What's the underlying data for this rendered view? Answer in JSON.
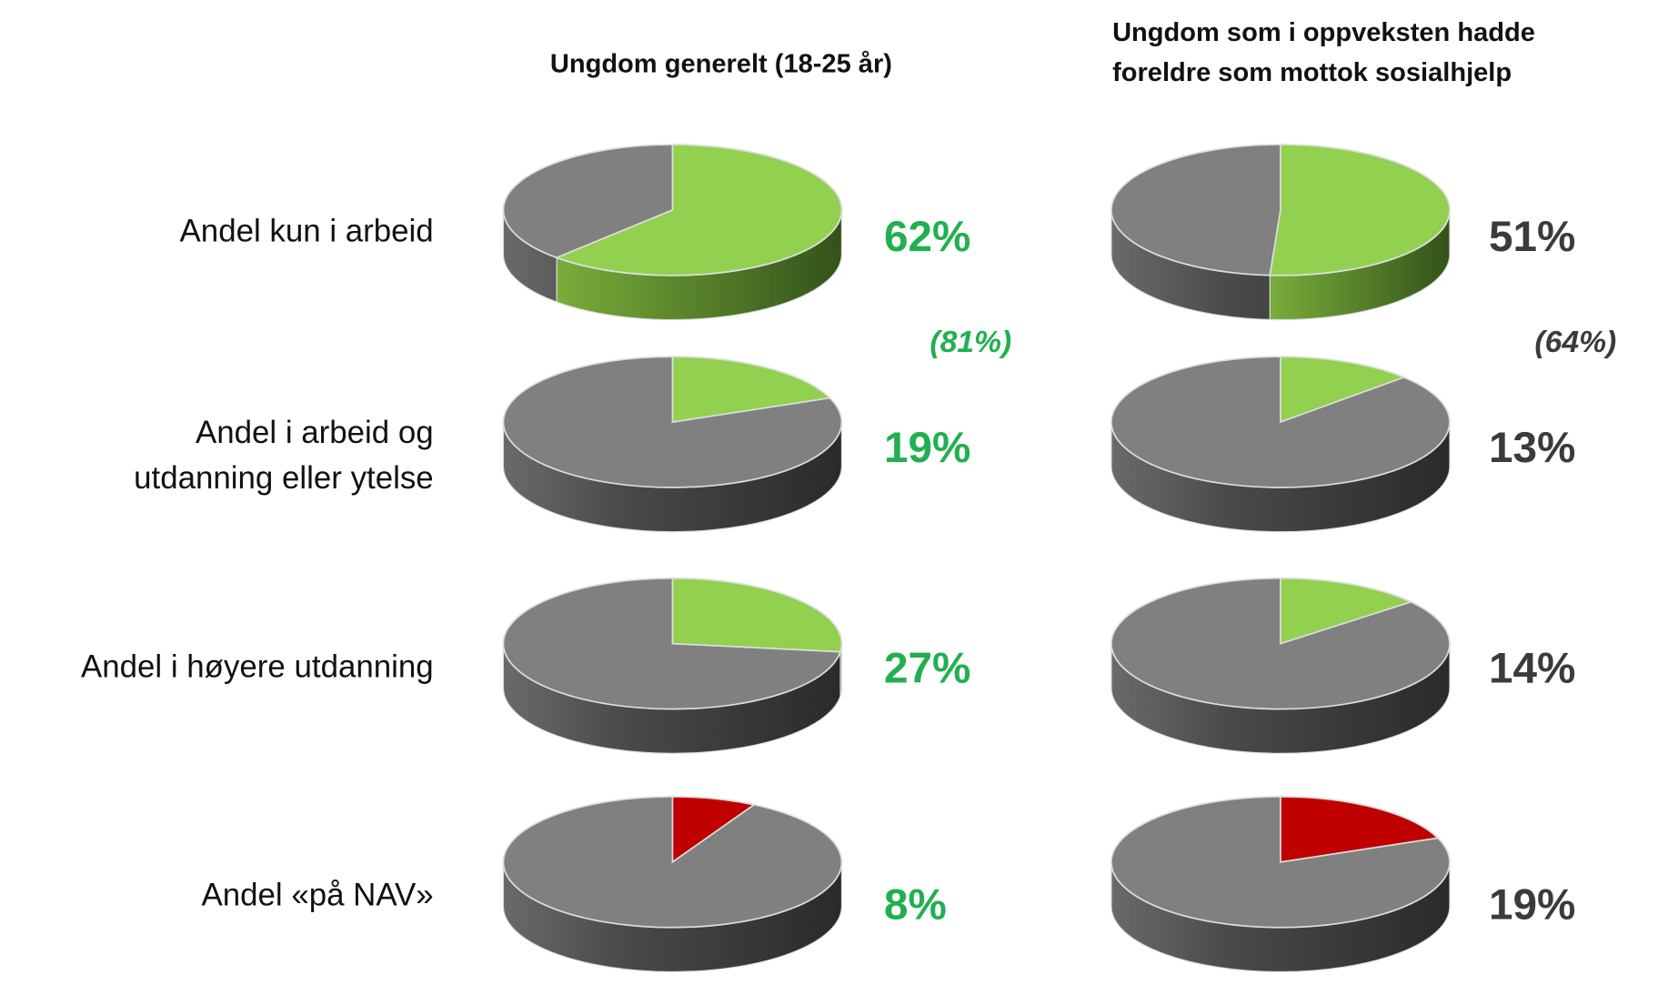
{
  "row_labels": [
    [
      "Andel kun i arbeid"
    ],
    [
      "Andel i arbeid og",
      "utdanning eller ytelse"
    ],
    [
      "Andel i høyere utdanning"
    ],
    [
      "Andel «på NAV»"
    ]
  ],
  "chart_data": [
    {
      "type": "pie",
      "title": [
        "Ungdom generelt (18-25 år)"
      ],
      "values": [
        62,
        19,
        27,
        8
      ],
      "value_labels": [
        "62%",
        "19%",
        "27%",
        "8%"
      ],
      "subtotal": {
        "value": 81,
        "label": "(81%)"
      },
      "colors": [
        "#92d050",
        "#92d050",
        "#92d050",
        "#c00000"
      ],
      "rest_color": "#808080",
      "label_color": "#21b04f"
    },
    {
      "type": "pie",
      "title": [
        "Ungdom som i oppveksten hadde",
        "foreldre som mottok sosialhjelp"
      ],
      "values": [
        51,
        13,
        14,
        19
      ],
      "value_labels": [
        "51%",
        "13%",
        "14%",
        "19%"
      ],
      "subtotal": {
        "value": 64,
        "label": "(64%)"
      },
      "colors": [
        "#92d050",
        "#92d050",
        "#92d050",
        "#c00000"
      ],
      "rest_color": "#808080",
      "label_color": "#3b3b3b"
    }
  ]
}
